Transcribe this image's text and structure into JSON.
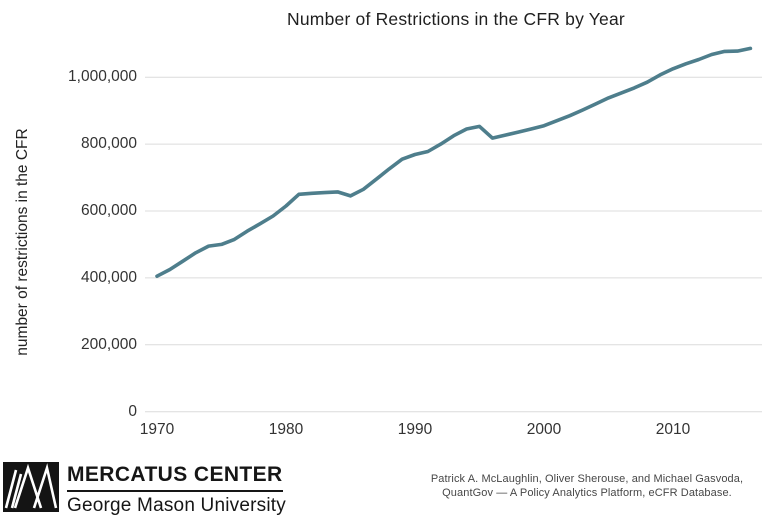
{
  "chart_data": {
    "type": "line",
    "title": "Number of Restrictions in the CFR by Year",
    "xlabel": "",
    "ylabel": "number of restrictions in the CFR",
    "series_name": "restrictions-in-cfr",
    "x": [
      1970,
      1971,
      1972,
      1973,
      1974,
      1975,
      1976,
      1977,
      1978,
      1979,
      1980,
      1981,
      1982,
      1983,
      1984,
      1985,
      1986,
      1987,
      1988,
      1989,
      1990,
      1991,
      1992,
      1993,
      1994,
      1995,
      1996,
      1997,
      1998,
      1999,
      2000,
      2001,
      2002,
      2003,
      2004,
      2005,
      2006,
      2007,
      2008,
      2009,
      2010,
      2011,
      2012,
      2013,
      2014,
      2015,
      2016
    ],
    "values": [
      405000,
      425000,
      450000,
      475000,
      495000,
      500000,
      515000,
      540000,
      562000,
      585000,
      615000,
      650000,
      653000,
      655000,
      657000,
      645000,
      665000,
      695000,
      726000,
      755000,
      769000,
      778000,
      800000,
      825000,
      845000,
      853000,
      818000,
      827000,
      836000,
      845000,
      855000,
      870000,
      885000,
      902000,
      920000,
      938000,
      953000,
      968000,
      985000,
      1007000,
      1025000,
      1040000,
      1053000,
      1068000,
      1077000,
      1078000,
      1086000
    ],
    "x_ticks": [
      1970,
      1980,
      1990,
      2000,
      2010
    ],
    "y_ticks": [
      0,
      200000,
      400000,
      600000,
      800000,
      1000000
    ],
    "y_tick_labels": [
      "0",
      "200,000",
      "400,000",
      "600,000",
      "800,000",
      "1,000,000"
    ],
    "xlim": [
      1969.3,
      2017
    ],
    "ylim": [
      0,
      1100000
    ],
    "grid": "horizontal",
    "legend": "none",
    "line_color": "#4e7e8c"
  },
  "colors": {
    "line": "#4e7e8c",
    "grid": "#dcdcdc",
    "title_text": "#1f1f1f",
    "tick_text": "#333333",
    "credit_text": "#474747",
    "logo_black": "#141414"
  },
  "footer": {
    "brand_name": "MERCATUS CENTER",
    "brand_sub": "George Mason University",
    "credit_line1": "Patrick A. McLaughlin, Oliver Sherouse, and Michael Gasvoda,",
    "credit_line2": "QuantGov — A Policy Analytics Platform, eCFR Database."
  }
}
